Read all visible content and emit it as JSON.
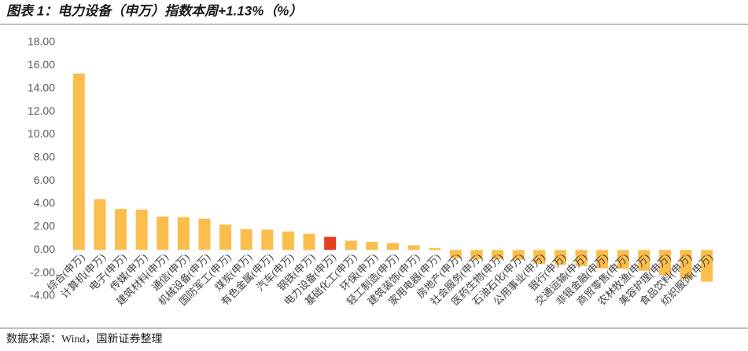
{
  "chart_data": {
    "type": "bar",
    "title": "图表 1：电力设备（申万）指数本周+1.13%（%）",
    "source": "数据来源：Wind，国新证券整理",
    "categories": [
      "综合(申万)",
      "计算机(申万)",
      "电子(申万)",
      "传媒(申万)",
      "建筑材料(申万)",
      "通信(申万)",
      "机械设备(申万)",
      "国防军工(申万)",
      "煤炭(申万)",
      "有色金属(申万)",
      "汽车(申万)",
      "钢铁(申万)",
      "电力设备(申万)",
      "基础化工(申万)",
      "环保(申万)",
      "轻工制造(申万)",
      "建筑装饰(申万)",
      "家用电器(申万)",
      "房地产(申万)",
      "社会服务(申万)",
      "医药生物(申万)",
      "石油石化(申万)",
      "公用事业(申万)",
      "银行(申万)",
      "交通运输(申万)",
      "非银金融(申万)",
      "商贸零售(申万)",
      "农林牧渔(申万)",
      "美容护理(申万)",
      "食品饮料(申万)",
      "纺织服饰(申万)"
    ],
    "values": [
      15.3,
      4.4,
      3.55,
      3.5,
      2.9,
      2.85,
      2.7,
      2.2,
      1.8,
      1.75,
      1.6,
      1.4,
      1.13,
      0.8,
      0.7,
      0.6,
      0.4,
      0.15,
      -0.7,
      -0.8,
      -0.8,
      -0.85,
      -1.2,
      -1.3,
      -1.4,
      -1.6,
      -1.65,
      -1.8,
      -2.2,
      -2.5,
      -2.75
    ],
    "colors": [
      "#fbbd4b",
      "#fbbd4b",
      "#fbbd4b",
      "#fbbd4b",
      "#fbbd4b",
      "#fbbd4b",
      "#fbbd4b",
      "#fbbd4b",
      "#fbbd4b",
      "#fbbd4b",
      "#fbbd4b",
      "#fbbd4b",
      "#e2401c",
      "#fbbd4b",
      "#fbbd4b",
      "#fbbd4b",
      "#fbbd4b",
      "#fbbd4b",
      "#fbbd4b",
      "#fbbd4b",
      "#fbbd4b",
      "#fbbd4b",
      "#fbbd4b",
      "#fbbd4b",
      "#fbbd4b",
      "#fbbd4b",
      "#fbbd4b",
      "#fbbd4b",
      "#fbbd4b",
      "#fbbd4b",
      "#fbbd4b"
    ],
    "ylim": [
      -4,
      18
    ],
    "yticks": [
      {
        "value": -4,
        "label": "-4.00"
      },
      {
        "value": -2,
        "label": "-2.00"
      },
      {
        "value": 0,
        "label": "0.00"
      },
      {
        "value": 2,
        "label": "2.00"
      },
      {
        "value": 4,
        "label": "4.00"
      },
      {
        "value": 6,
        "label": "6.00"
      },
      {
        "value": 8,
        "label": "8.00"
      },
      {
        "value": 10,
        "label": "10.00"
      },
      {
        "value": 12,
        "label": "12.00"
      },
      {
        "value": 14,
        "label": "14.00"
      },
      {
        "value": 16,
        "label": "16.00"
      },
      {
        "value": 18,
        "label": "18.00"
      }
    ]
  }
}
